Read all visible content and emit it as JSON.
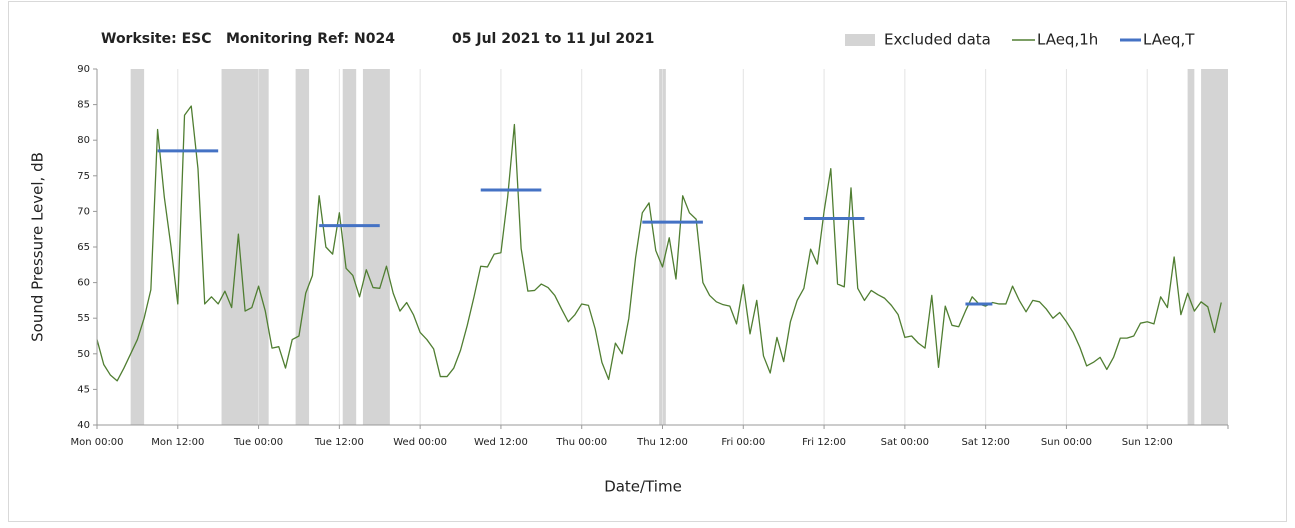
{
  "chart_data": {
    "type": "line",
    "title": [
      "Worksite: ESC",
      "Monitoring Ref: N024",
      "05 Jul 2021 to 11 Jul 2021"
    ],
    "x_label": "Date/Time",
    "y_label": "Sound Pressure Level, dB",
    "xlim": [
      0,
      168
    ],
    "xticks": [
      {
        "value": 0,
        "label": "Mon 00:00"
      },
      {
        "value": 12,
        "label": "Mon 12:00"
      },
      {
        "value": 24,
        "label": "Tue 00:00"
      },
      {
        "value": 36,
        "label": "Tue 12:00"
      },
      {
        "value": 48,
        "label": "Wed 00:00"
      },
      {
        "value": 60,
        "label": "Wed 12:00"
      },
      {
        "value": 72,
        "label": "Thu 00:00"
      },
      {
        "value": 84,
        "label": "Thu 12:00"
      },
      {
        "value": 96,
        "label": "Fri 00:00"
      },
      {
        "value": 108,
        "label": "Fri 12:00"
      },
      {
        "value": 120,
        "label": "Sat 00:00"
      },
      {
        "value": 132,
        "label": "Sat 12:00"
      },
      {
        "value": 144,
        "label": "Sun 00:00"
      },
      {
        "value": 156,
        "label": "Sun 12:00"
      }
    ],
    "ylim": [
      40,
      90
    ],
    "yticks": [
      40,
      45,
      50,
      55,
      60,
      65,
      70,
      75,
      80,
      85,
      90
    ],
    "grid": true,
    "legend": "top-right",
    "series": [
      {
        "name": "Excluded data",
        "color": "#d4d4d4",
        "x_start": [
          5,
          18.5,
          29.5,
          36.5,
          39.5,
          83.5,
          162,
          164
        ],
        "x_end": [
          7,
          25.5,
          31.5,
          38.5,
          43.5,
          84.5,
          163,
          168
        ]
      },
      {
        "name": "LAeq,1h",
        "color": "#507e32",
        "x": [
          0,
          1,
          2,
          3,
          4,
          5,
          6,
          7,
          8,
          9,
          10,
          11,
          12,
          13,
          14,
          15,
          16,
          17,
          18,
          19,
          20,
          21,
          22,
          23,
          24,
          25,
          26,
          27,
          28,
          29,
          30,
          31,
          32,
          33,
          34,
          35,
          36,
          37,
          38,
          39,
          40,
          41,
          42,
          43,
          44,
          45,
          46,
          47,
          48,
          49,
          50,
          51,
          52,
          53,
          54,
          55,
          56,
          57,
          58,
          59,
          60,
          61,
          62,
          63,
          64,
          65,
          66,
          67,
          68,
          69,
          70,
          71,
          72,
          73,
          74,
          75,
          76,
          77,
          78,
          79,
          80,
          81,
          82,
          83,
          84,
          85,
          86,
          87,
          88,
          89,
          90,
          91,
          92,
          93,
          94,
          95,
          96,
          97,
          98,
          99,
          100,
          101,
          102,
          103,
          104,
          105,
          106,
          107,
          108,
          109,
          110,
          111,
          112,
          113,
          114,
          115,
          116,
          117,
          118,
          119,
          120,
          121,
          122,
          123,
          124,
          125,
          126,
          127,
          128,
          129,
          130,
          131,
          132,
          133,
          134,
          135,
          136,
          137,
          138,
          139,
          140,
          141,
          142,
          143,
          144,
          145,
          146,
          147,
          148,
          149,
          150,
          151,
          152,
          153,
          154,
          155,
          156,
          157,
          158,
          159,
          160,
          161,
          162,
          163,
          164,
          165,
          166,
          167
        ],
        "values": [
          52,
          48.5,
          47,
          46.2,
          48,
          50,
          52,
          55,
          59,
          81.5,
          72,
          65,
          57,
          83.5,
          84.8,
          76,
          57,
          58,
          57,
          58.8,
          56.5,
          66.8,
          56,
          56.5,
          59.5,
          56,
          50.8,
          51,
          48,
          52,
          52.5,
          58.5,
          61,
          72.2,
          65,
          64,
          69.8,
          62,
          61,
          58,
          61.8,
          59.3,
          59.2,
          62.3,
          58.5,
          56,
          57.2,
          55.5,
          53,
          52,
          50.7,
          46.8,
          46.8,
          48,
          50.5,
          54,
          58,
          62.3,
          62.2,
          64,
          64.2,
          72,
          82.2,
          64.8,
          58.8,
          58.9,
          59.8,
          59.3,
          58.2,
          56.3,
          54.5,
          55.5,
          57,
          56.8,
          53.5,
          48.8,
          46.4,
          51.5,
          50,
          55,
          63.5,
          69.8,
          71.2,
          64.5,
          62.2,
          66.3,
          60.5,
          72.2,
          69.8,
          68.9,
          60,
          58.2,
          57.3,
          56.9,
          56.7,
          54.2,
          59.7,
          52.8,
          57.5,
          49.7,
          47.3,
          52.3,
          48.9,
          54.5,
          57.5,
          59.2,
          64.7,
          62.6,
          70,
          76,
          59.8,
          59.4,
          73.3,
          59.2,
          57.5,
          58.9,
          58.3,
          57.8,
          56.8,
          55.5,
          52.3,
          52.5,
          51.5,
          50.8,
          58.2,
          48.1,
          56.7,
          54,
          53.8,
          56,
          58,
          57,
          56.7,
          57.2,
          57,
          57,
          59.5,
          57.5,
          55.9,
          57.5,
          57.3,
          56.3,
          55,
          55.8,
          54.5,
          53,
          50.9,
          48.3,
          48.8,
          49.5,
          47.8,
          49.5,
          52.2,
          52.2,
          52.5,
          54.3,
          54.5,
          54.2,
          58,
          56.5,
          63.6,
          55.5,
          58.5,
          56,
          57.3,
          56.6,
          53,
          57.2
        ]
      },
      {
        "name": "LAeq,T",
        "color": "#4472c4",
        "x_start": [
          9,
          33,
          57,
          81,
          105,
          129
        ],
        "x_end": [
          18,
          42,
          66,
          90,
          114,
          133
        ],
        "values": [
          78.5,
          68,
          73,
          68.5,
          69,
          57
        ]
      }
    ]
  }
}
